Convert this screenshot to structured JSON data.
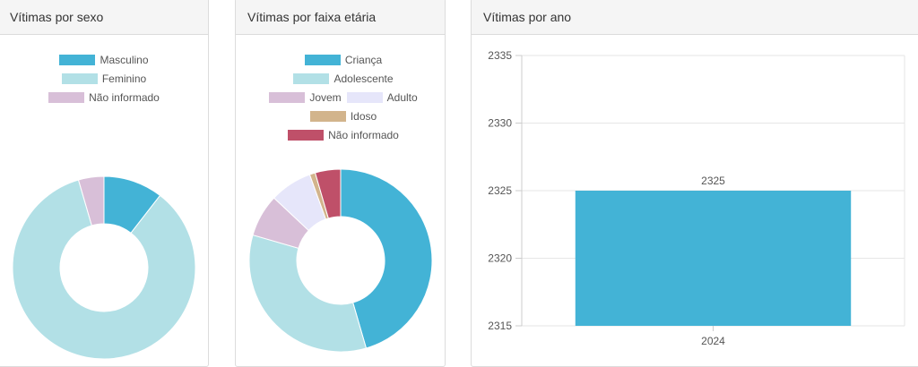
{
  "colors": {
    "masculino": "#43b3d6",
    "feminino": "#b2e0e6",
    "nao_informado_light": "#d8bfd8",
    "crianca": "#43b3d6",
    "adolescente": "#b2e0e6",
    "jovem": "#d8bfd8",
    "adulto": "#e6e6fa",
    "idoso": "#d2b48c",
    "nao_informado_dark": "#bf5069",
    "bar": "#43b3d6"
  },
  "cards": {
    "sexo": {
      "title": "Vítimas por sexo"
    },
    "faixa": {
      "title": "Vítimas por faixa etária"
    },
    "ano": {
      "title": "Vítimas por ano"
    }
  },
  "chart_data": [
    {
      "type": "pie",
      "title": "Vítimas por sexo",
      "labels": [
        "Masculino",
        "Feminino",
        "Não informado"
      ],
      "values": [
        10.5,
        85,
        4.5
      ],
      "colors": [
        "#43b3d6",
        "#b2e0e6",
        "#d8bfd8"
      ],
      "legend": "top"
    },
    {
      "type": "pie",
      "title": "Vítimas por faixa etária",
      "labels": [
        "Criança",
        "Adolescente",
        "Jovem",
        "Adulto",
        "Idoso",
        "Não informado"
      ],
      "values": [
        45.5,
        34,
        7.5,
        7.5,
        1,
        4.5
      ],
      "colors": [
        "#43b3d6",
        "#b2e0e6",
        "#d8bfd8",
        "#e6e6fa",
        "#d2b48c",
        "#bf5069"
      ],
      "legend": "top"
    },
    {
      "type": "bar",
      "title": "Vítimas por ano",
      "categories": [
        "2024"
      ],
      "values": [
        2325
      ],
      "data_labels": [
        "2325"
      ],
      "ylim": [
        2315,
        2335
      ],
      "yticks": [
        2315,
        2320,
        2325,
        2330,
        2335
      ],
      "grid": true
    }
  ]
}
